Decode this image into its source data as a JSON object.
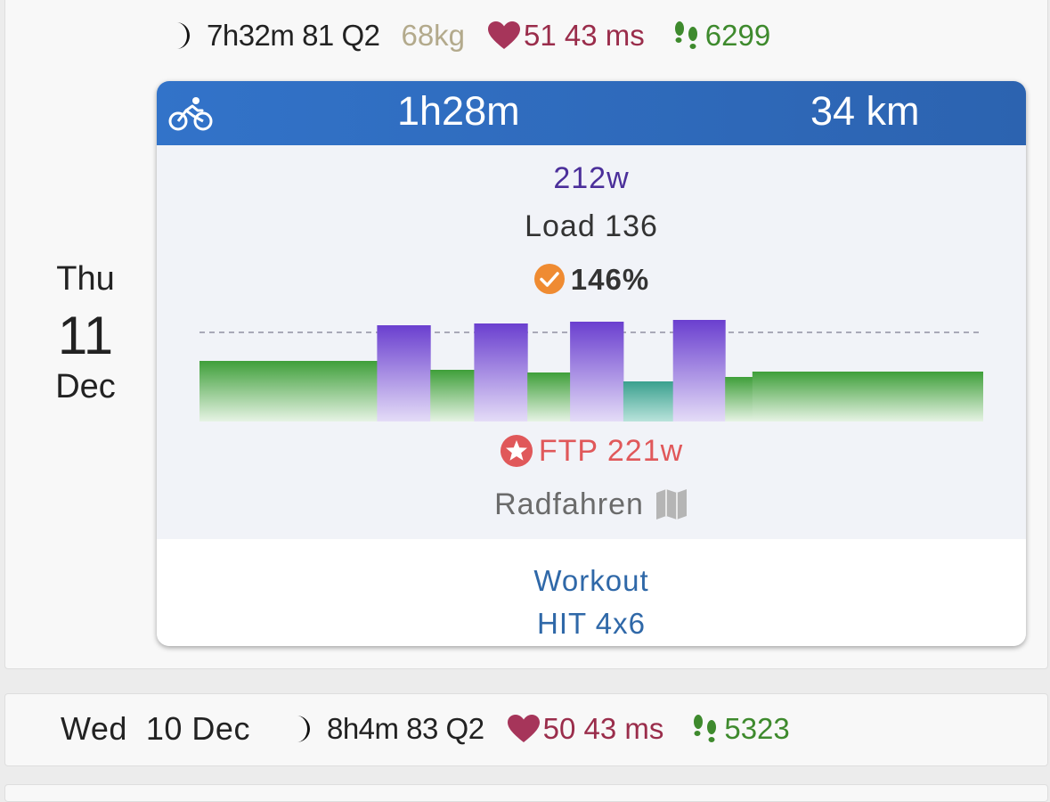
{
  "day1": {
    "day_of_week": "Thu",
    "day_number": "11",
    "month": "Dec",
    "sleep": "7h32m 81 Q2",
    "weight": "68kg",
    "heart": "51 43 ms",
    "steps": "6299"
  },
  "activity": {
    "duration": "1h28m",
    "distance": "34 km",
    "power": "212w",
    "load": "Load 136",
    "percent": "146%",
    "ftp": "FTP 221w",
    "sport": "Radfahren",
    "workout_label": "Workout",
    "workout_name": "HIT 4x6",
    "icons": [
      "bike-icon",
      "check-circle-icon",
      "star-circle-icon",
      "map-icon"
    ],
    "colors": {
      "header": "#3273c9",
      "interval": "#6a3fcf",
      "endurance": "#3f9f3a",
      "recovery": "#3aa08e",
      "ftp": "#e0585a"
    }
  },
  "chart_data": {
    "type": "bar",
    "description_units": "relative power vs FTP line (1.0 = FTP)",
    "ftp_line": 1.0,
    "segments": [
      {
        "zone": "endurance",
        "duration": 1.5,
        "level": 0.68
      },
      {
        "zone": "interval",
        "duration": 0.45,
        "level": 1.08
      },
      {
        "zone": "endurance",
        "duration": 0.37,
        "level": 0.58
      },
      {
        "zone": "interval",
        "duration": 0.45,
        "level": 1.1
      },
      {
        "zone": "endurance",
        "duration": 0.36,
        "level": 0.55
      },
      {
        "zone": "interval",
        "duration": 0.45,
        "level": 1.12
      },
      {
        "zone": "recovery",
        "duration": 0.42,
        "level": 0.45
      },
      {
        "zone": "interval",
        "duration": 0.44,
        "level": 1.14
      },
      {
        "zone": "endurance",
        "duration": 0.23,
        "level": 0.5
      },
      {
        "zone": "endurance",
        "duration": 1.95,
        "level": 0.56
      }
    ]
  },
  "day2": {
    "day_label": "Wed",
    "date": "10 Dec",
    "sleep": "8h4m 83 Q2",
    "heart": "50 43 ms",
    "steps": "5323"
  }
}
